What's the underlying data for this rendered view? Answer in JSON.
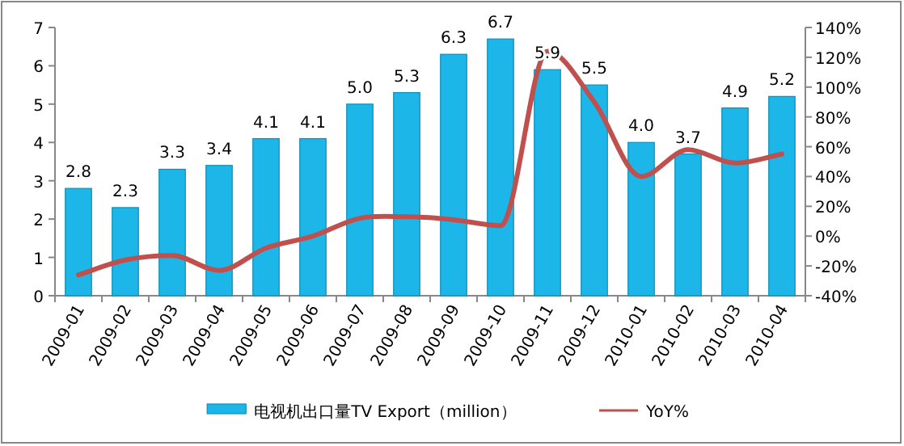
{
  "chart_data": {
    "type": "bar",
    "categories": [
      "2009-01",
      "2009-02",
      "2009-03",
      "2009-04",
      "2009-05",
      "2009-06",
      "2009-07",
      "2009-08",
      "2009-09",
      "2009-10",
      "2009-11",
      "2009-12",
      "2010-01",
      "2010-02",
      "2010-03",
      "2010-04"
    ],
    "series": [
      {
        "name": "电视机出口量TV Export（million）",
        "color": "#1cb6e8",
        "values": [
          2.8,
          2.3,
          3.3,
          3.4,
          4.1,
          4.1,
          5.0,
          5.3,
          6.3,
          6.7,
          5.9,
          5.5,
          4.0,
          3.7,
          4.9,
          5.2
        ],
        "value_labels": [
          "2.8",
          "2.3",
          "3.3",
          "3.4",
          "4.1",
          "4.1",
          "5.0",
          "5.3",
          "6.3",
          "6.7",
          "5.9",
          "5.5",
          "4.0",
          "3.7",
          "4.9",
          "5.2"
        ]
      },
      {
        "name": "YoY%",
        "type": "line",
        "axis": "y2",
        "color": "#c0504d",
        "values": [
          -26,
          -16,
          -13,
          -23,
          -8,
          0,
          12,
          13,
          11,
          7,
          124,
          90,
          40,
          58,
          49,
          55
        ]
      }
    ],
    "ylim": [
      0,
      7
    ],
    "yticks": [
      0,
      1,
      2,
      3,
      4,
      5,
      6,
      7
    ],
    "y2lim": [
      -40,
      140
    ],
    "y2ticks": [
      {
        "value": -40,
        "label": "-40%"
      },
      {
        "value": -20,
        "label": "-20%"
      },
      {
        "value": 0,
        "label": "0%"
      },
      {
        "value": 20,
        "label": "20%"
      },
      {
        "value": 40,
        "label": "40%"
      },
      {
        "value": 60,
        "label": "60%"
      },
      {
        "value": 80,
        "label": "80%"
      },
      {
        "value": 100,
        "label": "100%"
      },
      {
        "value": 120,
        "label": "120%"
      },
      {
        "value": 140,
        "label": "140%"
      }
    ],
    "legend": "bottom",
    "grid": false,
    "marker": "none"
  }
}
